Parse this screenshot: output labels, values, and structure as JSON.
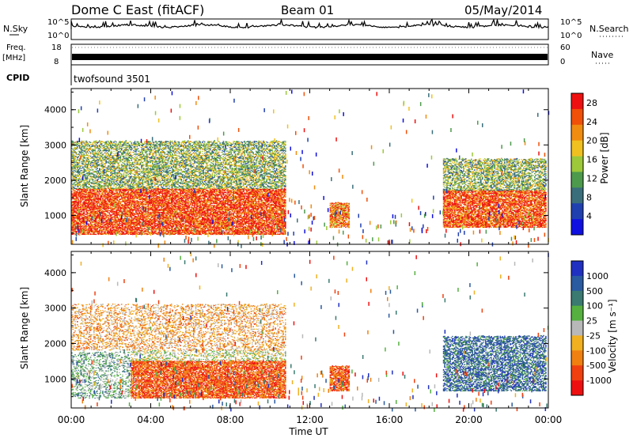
{
  "header": {
    "station": "Dome C East (fitACF)",
    "beam": "Beam 01",
    "date": "05/May/2014"
  },
  "strips": {
    "nsky_label": "N.Sky",
    "nsky_ticks": [
      "10^5",
      "10^0"
    ],
    "nsearch_label": "N.Search",
    "nsearch_ticks": [
      "10^5",
      "10^0"
    ],
    "freq_label": "Freq.",
    "freq_unit": "[MHz]",
    "freq_ticks": [
      "18",
      "8"
    ],
    "nave_label": "Nave",
    "nave_ticks": [
      "60",
      "0"
    ],
    "cpid_label": "CPID",
    "cpid_value": "twofsound 3501"
  },
  "colors": {
    "power_scale": [
      "#1010e0",
      "#2040b0",
      "#3a6e7a",
      "#4d9a4d",
      "#9cc83a",
      "#f0c020",
      "#f08c10",
      "#f05008",
      "#ee1010"
    ],
    "velocity_scale": [
      "#2030c0",
      "#2a5aa0",
      "#3a7a70",
      "#55b040",
      "#b8b8b8",
      "#f0b020",
      "#f08010",
      "#f04010",
      "#ee1010"
    ]
  },
  "chart_data": [
    {
      "type": "heatmap",
      "title": "Power",
      "xlabel": "",
      "ylabel": "Slant Range [km]",
      "x_ticks": [
        "00:00",
        "04:00",
        "08:00",
        "12:00",
        "16:00",
        "20:00",
        "00:00"
      ],
      "y_ticks": [
        "1000",
        "2000",
        "3000",
        "4000"
      ],
      "xlim_hours": [
        0,
        24
      ],
      "ylim_km": [
        180,
        4600
      ],
      "colorbar": {
        "label": "Power [dB]",
        "ticks": [
          "4",
          "8",
          "12",
          "16",
          "20",
          "24",
          "28"
        ],
        "range": [
          0,
          30
        ]
      },
      "regions": [
        {
          "t0": 0.0,
          "t1": 10.8,
          "r0": 450,
          "r1": 1750,
          "level": 0.88
        },
        {
          "t0": 0.0,
          "t1": 10.8,
          "r0": 1750,
          "r1": 3100,
          "level": 0.45
        },
        {
          "t0": 13.0,
          "t1": 14.0,
          "r0": 650,
          "r1": 1350,
          "level": 0.75
        },
        {
          "t0": 18.7,
          "t1": 23.9,
          "r0": 650,
          "r1": 1700,
          "level": 0.85
        },
        {
          "t0": 18.7,
          "t1": 23.9,
          "r0": 1700,
          "r1": 2600,
          "level": 0.45
        }
      ]
    },
    {
      "type": "heatmap",
      "title": "Velocity",
      "xlabel": "Time UT",
      "ylabel": "Slant Range [km]",
      "x_ticks": [
        "00:00",
        "04:00",
        "08:00",
        "12:00",
        "16:00",
        "20:00",
        "00:00"
      ],
      "y_ticks": [
        "1000",
        "2000",
        "3000",
        "4000"
      ],
      "xlim_hours": [
        0,
        24
      ],
      "ylim_km": [
        180,
        4600
      ],
      "colorbar": {
        "label": "Velocity [m s⁻¹]",
        "ticks": [
          "1000",
          "500",
          "100",
          "25",
          "-25",
          "-100",
          "-500",
          "-1000"
        ],
        "range": [
          -1000,
          1000
        ]
      },
      "regions": [
        {
          "t0": 0.0,
          "t1": 3.0,
          "r0": 450,
          "r1": 1750,
          "level": 0.25
        },
        {
          "t0": 3.0,
          "t1": 10.8,
          "r0": 450,
          "r1": 1500,
          "level": -0.6
        },
        {
          "t0": 3.0,
          "t1": 10.8,
          "r0": 1500,
          "r1": 1800,
          "level": 0.0
        },
        {
          "t0": 0.0,
          "t1": 10.8,
          "r0": 1800,
          "r1": 3100,
          "level": -0.3
        },
        {
          "t0": 13.0,
          "t1": 14.0,
          "r0": 650,
          "r1": 1350,
          "level": -0.6
        },
        {
          "t0": 18.7,
          "t1": 23.9,
          "r0": 650,
          "r1": 2200,
          "level": 0.6
        }
      ]
    }
  ]
}
